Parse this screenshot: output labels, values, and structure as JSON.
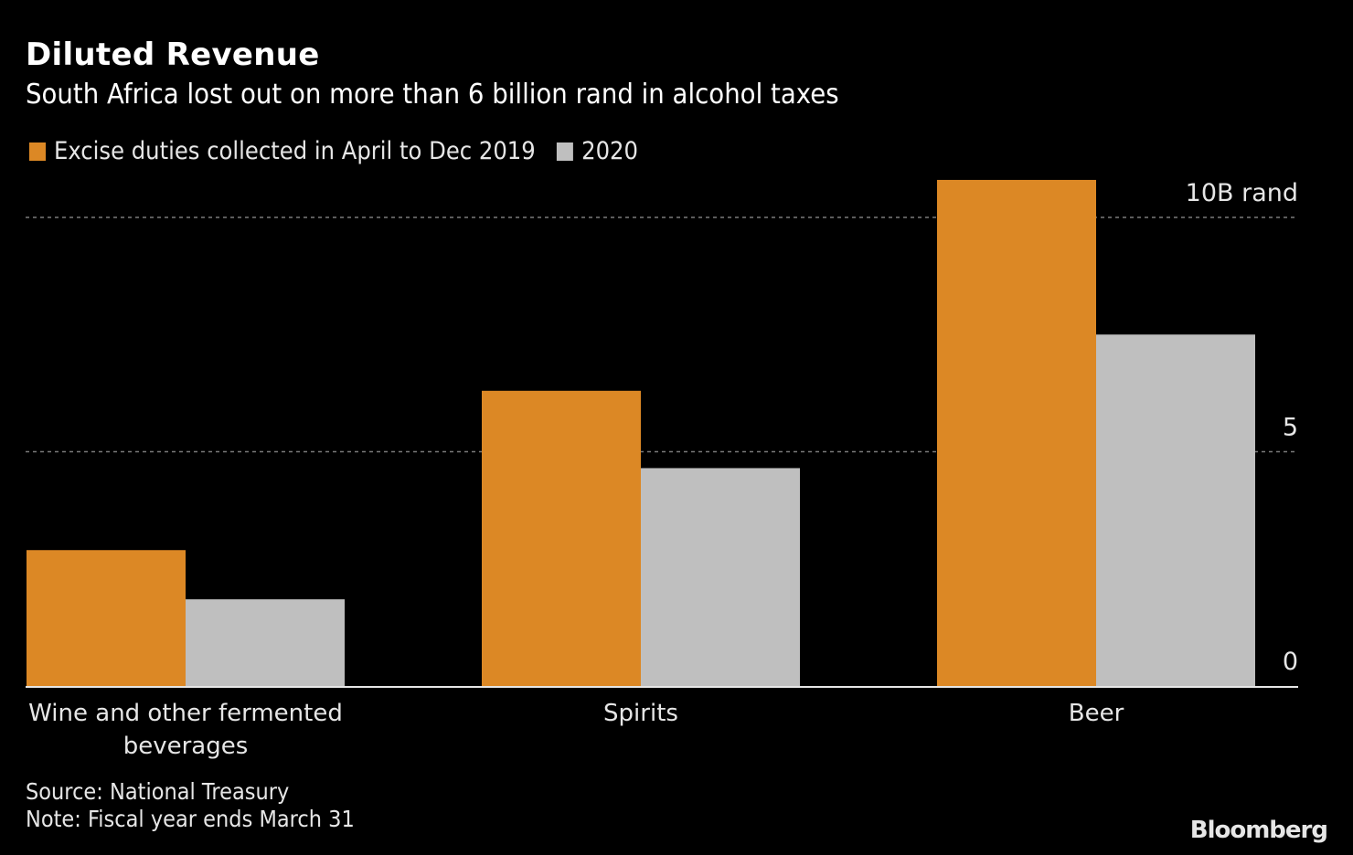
{
  "header": {
    "title": "Diluted Revenue",
    "subtitle": "South Africa lost out on more than 6 billion rand in alcohol taxes"
  },
  "legend": [
    {
      "label": "Excise duties collected in April to Dec 2019",
      "color": "#dc8825"
    },
    {
      "label": "2020",
      "color": "#bfbfbf"
    }
  ],
  "footer": {
    "source": "Source: National Treasury",
    "note": "Note: Fiscal year ends March 31",
    "brand": "Bloomberg"
  },
  "chart_data": {
    "type": "bar",
    "title": "Diluted Revenue",
    "subtitle": "South Africa lost out on more than 6 billion rand in alcohol taxes",
    "categories": [
      "Wine and other fermented beverages",
      "Spirits",
      "Beer"
    ],
    "category_lines": [
      [
        "Wine and other fermented",
        "beverages"
      ],
      [
        "Spirits"
      ],
      [
        "Beer"
      ]
    ],
    "series": [
      {
        "name": "Excise duties collected in April to Dec 2019",
        "color": "#dc8825",
        "values": [
          2.9,
          6.3,
          10.8
        ]
      },
      {
        "name": "2020",
        "color": "#bfbfbf",
        "values": [
          1.85,
          4.65,
          7.5
        ]
      }
    ],
    "yticks": [
      0,
      5,
      10
    ],
    "ytick_labels": [
      "0",
      "5",
      "10B rand"
    ],
    "ylim": [
      0,
      10.8
    ],
    "xlabel": "",
    "ylabel": "",
    "grid": true,
    "legend_position": "top-left",
    "axis_side": "right"
  }
}
